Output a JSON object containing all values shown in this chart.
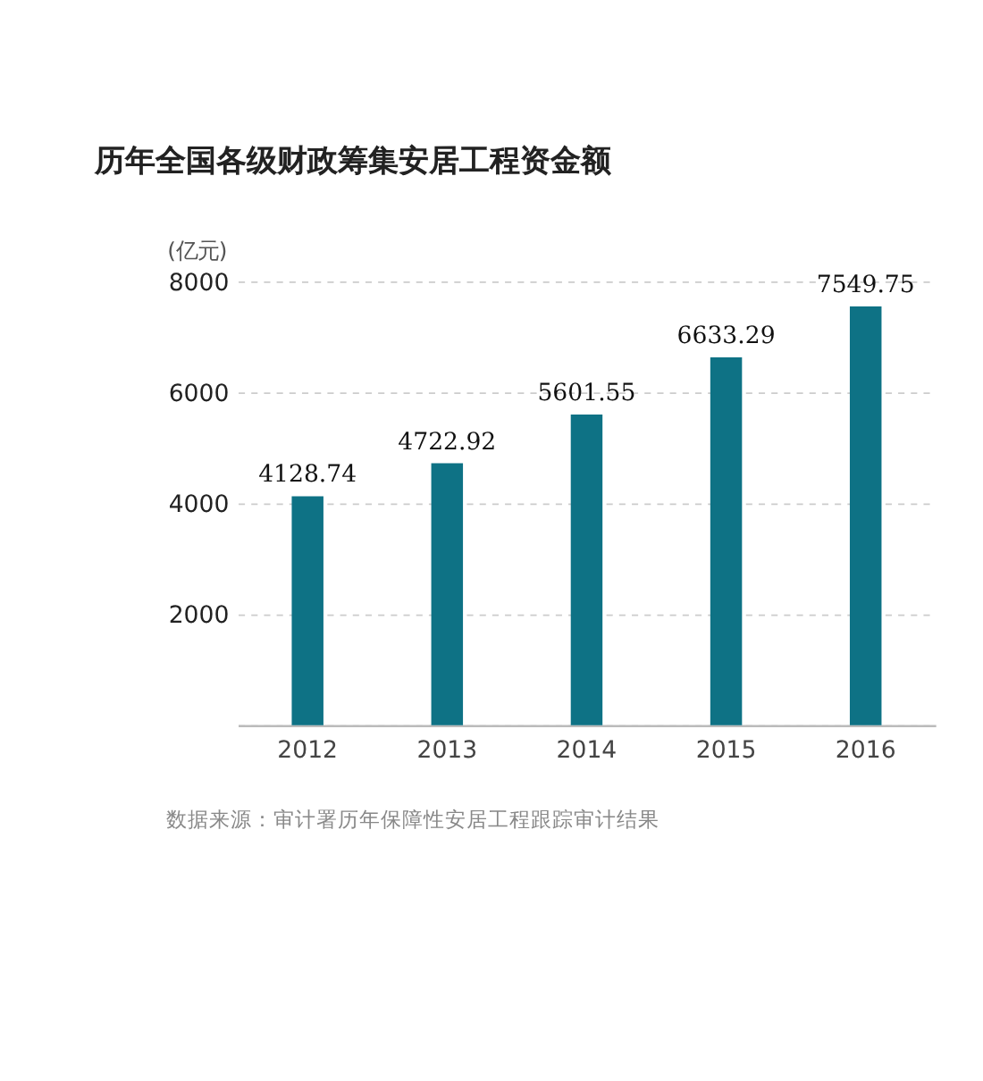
{
  "chart_data": {
    "type": "bar",
    "title": "历年全国各级财政筹集安居工程资金额",
    "ylabel": "(亿元)",
    "categories": [
      "2012",
      "2013",
      "2014",
      "2015",
      "2016"
    ],
    "values": [
      4128.74,
      4722.92,
      5601.55,
      6633.29,
      7549.75
    ],
    "color": "#0e7285",
    "ylim": [
      0,
      8000
    ],
    "yticks": [
      {
        "value": 0,
        "label": null
      },
      2000,
      4000,
      6000,
      8000
    ],
    "grid": "y",
    "data_labels": true,
    "annotations": [
      "数据来源：审计署历年保障性安居工程跟踪审计结果"
    ]
  }
}
